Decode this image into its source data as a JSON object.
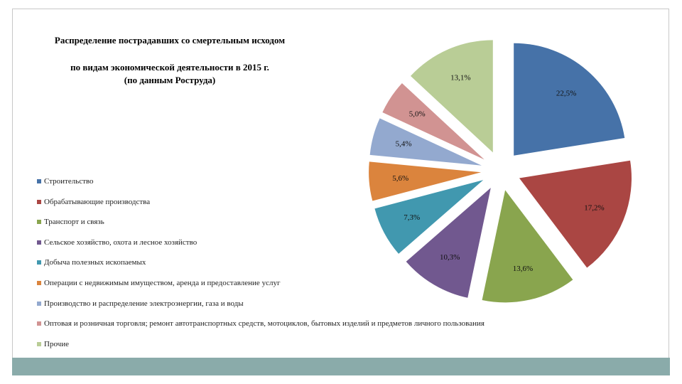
{
  "chart_data": {
    "type": "pie",
    "title": "Распределение пострадавших со смертельным исходом",
    "subtitle": [
      "по видам экономической деятельности в 2015 г.",
      "(по данным Роструда)"
    ],
    "categories": [
      "Строительство",
      "Обрабатывающие производства",
      "Транспорт и связь",
      "Сельское хозяйство, охота и лесное хозяйство",
      "Добыча полезных ископаемых",
      "Операции с недвижимым имуществом, аренда и предоставление услуг",
      "Производство и распределение электроэнергии, газа и воды",
      "Оптовая и розничная торговля; ремонт автотранспортных средств, мотоциклов, бытовых изделий и предметов личного пользования",
      "Прочие"
    ],
    "values": [
      22.5,
      17.2,
      13.6,
      10.3,
      7.3,
      5.6,
      5.4,
      5.0,
      13.1
    ],
    "value_labels": [
      "22,5%",
      "17,2%",
      "13,6%",
      "10,3%",
      "7,3%",
      "5,6%",
      "5,4%",
      "5,0%",
      "13,1%"
    ],
    "colors": [
      "#4672a8",
      "#aa4643",
      "#89a54e",
      "#71588f",
      "#4198af",
      "#db843d",
      "#93a9cf",
      "#d19392",
      "#b9cd96"
    ]
  }
}
